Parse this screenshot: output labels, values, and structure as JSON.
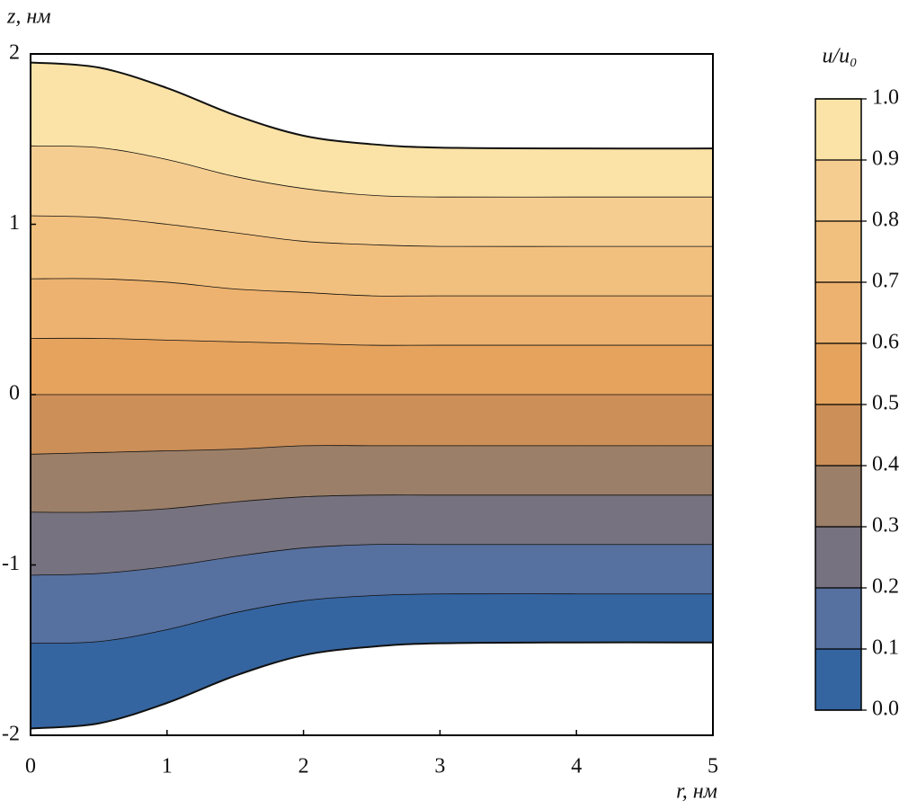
{
  "chart_data": {
    "type": "contour",
    "x_label": "r, нм",
    "y_label": "z, нм",
    "colorbar_title": "u/u₀",
    "x": [
      0,
      0.5,
      1,
      1.5,
      2,
      2.5,
      3,
      4,
      5
    ],
    "contours": [
      {
        "values": [
          -1.96,
          -1.93,
          -1.81,
          -1.65,
          -1.53,
          -1.48,
          -1.46,
          -1.455,
          -1.455
        ]
      },
      {
        "values": [
          -1.46,
          -1.45,
          -1.38,
          -1.28,
          -1.21,
          -1.18,
          -1.17,
          -1.17,
          -1.17
        ]
      },
      {
        "values": [
          -1.06,
          -1.05,
          -1.01,
          -0.95,
          -0.9,
          -0.88,
          -0.88,
          -0.88,
          -0.88
        ]
      },
      {
        "values": [
          -0.69,
          -0.69,
          -0.67,
          -0.63,
          -0.6,
          -0.59,
          -0.59,
          -0.59,
          -0.59
        ]
      },
      {
        "values": [
          -0.35,
          -0.34,
          -0.33,
          -0.32,
          -0.3,
          -0.3,
          -0.3,
          -0.3,
          -0.3
        ]
      },
      {
        "values": [
          0,
          0,
          0,
          0,
          0,
          0,
          0,
          0,
          0
        ]
      },
      {
        "values": [
          0.33,
          0.33,
          0.32,
          0.31,
          0.3,
          0.29,
          0.29,
          0.29,
          0.29
        ]
      },
      {
        "values": [
          0.68,
          0.68,
          0.66,
          0.62,
          0.6,
          0.58,
          0.58,
          0.58,
          0.58
        ]
      },
      {
        "values": [
          1.05,
          1.04,
          1.0,
          0.95,
          0.9,
          0.88,
          0.87,
          0.87,
          0.87
        ]
      },
      {
        "values": [
          1.46,
          1.45,
          1.38,
          1.28,
          1.21,
          1.17,
          1.16,
          1.16,
          1.16
        ]
      },
      {
        "values": [
          1.95,
          1.92,
          1.8,
          1.64,
          1.52,
          1.47,
          1.45,
          1.445,
          1.445
        ]
      }
    ],
    "levels": [
      {
        "value": 0,
        "label": "0.0"
      },
      0.1,
      0.2,
      0.3,
      0.4,
      0.5,
      0.6,
      0.7,
      0.8,
      0.9,
      {
        "value": 1,
        "label": "1.0"
      }
    ],
    "colors": [
      "#3565a0",
      "#56709f",
      "#77727f",
      "#9b7f68",
      "#cc8f58",
      "#e6a35d",
      "#edb26f",
      "#f2c07e",
      "#f6cd90",
      "#fbe3a7"
    ],
    "xlim": [
      0,
      5
    ],
    "xticks": [
      0,
      1,
      2,
      3,
      4,
      5
    ],
    "ylim": [
      -2,
      2
    ],
    "yticks": [
      -2,
      -1,
      0,
      1,
      2
    ]
  }
}
